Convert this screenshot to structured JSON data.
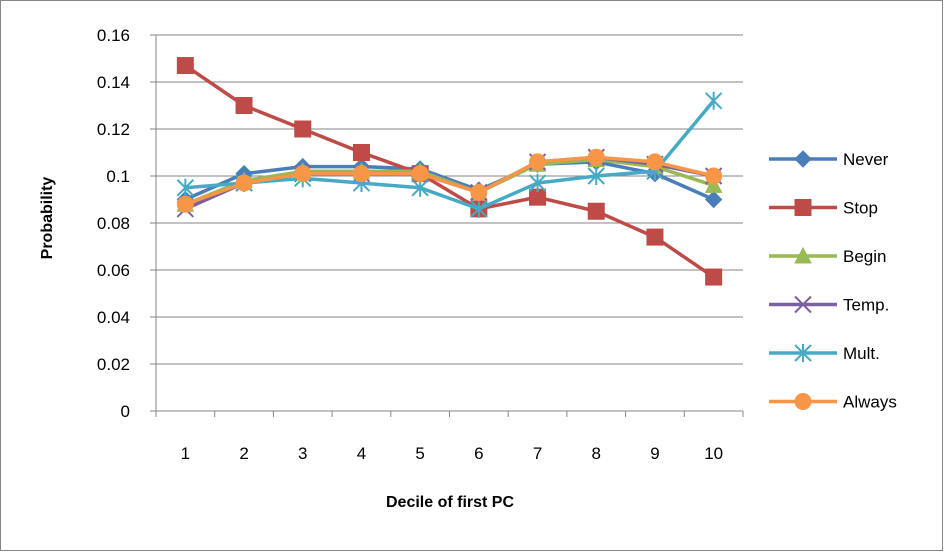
{
  "chart_data": {
    "type": "line",
    "title": "",
    "xlabel": "Decile of first PC",
    "ylabel": "Probability",
    "categories": [
      "1",
      "2",
      "3",
      "4",
      "5",
      "6",
      "7",
      "8",
      "9",
      "10"
    ],
    "ylim": [
      0,
      0.16
    ],
    "yticks": [
      "0",
      "0.02",
      "0.04",
      "0.06",
      "0.08",
      "0.1",
      "0.12",
      "0.14",
      "0.16"
    ],
    "grid": "horizontal",
    "legend_position": "right",
    "series": [
      {
        "name": "Never",
        "color": "#4a7ebb",
        "marker": "diamond",
        "values": [
          0.09,
          0.101,
          0.104,
          0.104,
          0.103,
          0.094,
          0.105,
          0.106,
          0.101,
          0.09
        ]
      },
      {
        "name": "Stop",
        "color": "#be4b48",
        "marker": "square",
        "values": [
          0.147,
          0.13,
          0.12,
          0.11,
          0.101,
          0.086,
          0.091,
          0.085,
          0.074,
          0.057
        ]
      },
      {
        "name": "Begin",
        "color": "#98b954",
        "marker": "triangle",
        "values": [
          0.088,
          0.098,
          0.102,
          0.102,
          0.102,
          0.093,
          0.105,
          0.107,
          0.104,
          0.096
        ]
      },
      {
        "name": "Temp.",
        "color": "#7d60a0",
        "marker": "x",
        "values": [
          0.086,
          0.097,
          0.101,
          0.101,
          0.101,
          0.093,
          0.106,
          0.108,
          0.105,
          0.1
        ]
      },
      {
        "name": "Mult.",
        "color": "#46aac5",
        "marker": "star",
        "values": [
          0.095,
          0.097,
          0.099,
          0.097,
          0.095,
          0.086,
          0.097,
          0.1,
          0.102,
          0.132
        ]
      },
      {
        "name": "Always",
        "color": "#f79646",
        "marker": "circle",
        "values": [
          0.088,
          0.097,
          0.101,
          0.101,
          0.101,
          0.093,
          0.106,
          0.108,
          0.106,
          0.1
        ]
      }
    ]
  }
}
